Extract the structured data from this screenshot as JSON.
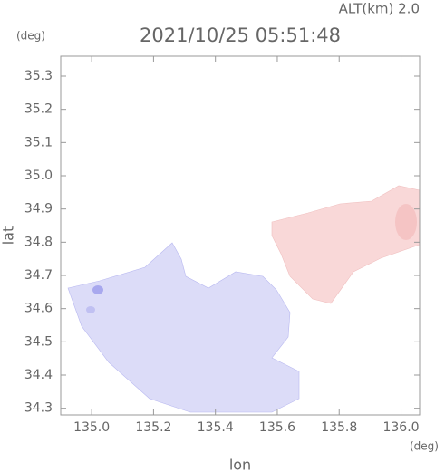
{
  "chart_data": {
    "type": "map",
    "title": "2021/10/25 05:51:48",
    "subtitle": "ALT(km) 2.0",
    "x_label": "lon",
    "y_label": "lat",
    "x_unit": "(deg)",
    "y_unit": "(deg)",
    "xlim": [
      134.9,
      136.06
    ],
    "ylim": [
      34.28,
      35.36
    ],
    "xticks": [
      {
        "value": 135,
        "label": "135.0"
      },
      135.2,
      135.4,
      135.6,
      135.8,
      {
        "value": 136,
        "label": "136.0"
      }
    ],
    "yticks": [
      34.3,
      34.4,
      34.5,
      34.6,
      34.7,
      34.8,
      34.9,
      {
        "value": 35,
        "label": "35.0"
      },
      35.1,
      35.2,
      35.3
    ],
    "grid": false
  }
}
